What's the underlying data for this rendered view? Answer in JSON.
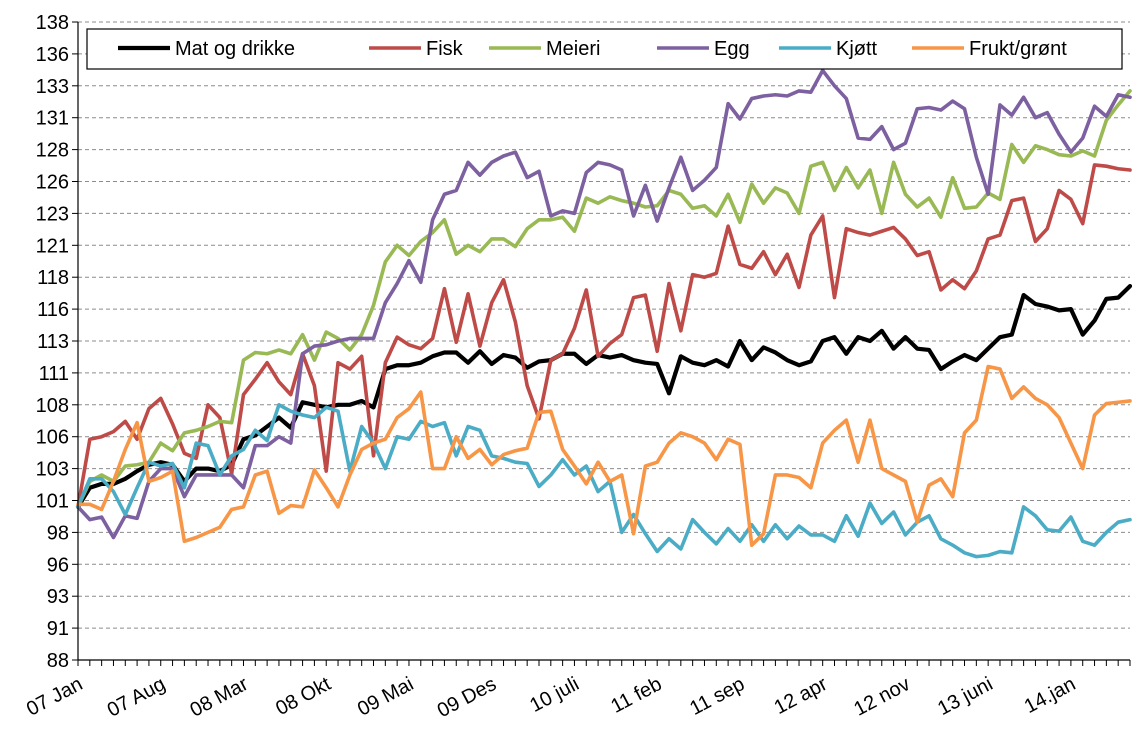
{
  "chart_data": {
    "type": "line",
    "categories": [
      "07 Jan",
      null,
      null,
      null,
      null,
      null,
      null,
      "07 Aug",
      null,
      null,
      null,
      null,
      null,
      null,
      "08 Mar",
      null,
      null,
      null,
      null,
      null,
      null,
      "08 Okt",
      null,
      null,
      null,
      null,
      null,
      null,
      "09 Mai",
      null,
      null,
      null,
      null,
      null,
      null,
      "09 Des",
      null,
      null,
      null,
      null,
      null,
      null,
      "10 juli",
      null,
      null,
      null,
      null,
      null,
      null,
      "11 feb",
      null,
      null,
      null,
      null,
      null,
      null,
      "11 sep",
      null,
      null,
      null,
      null,
      null,
      null,
      "12 apr",
      null,
      null,
      null,
      null,
      null,
      null,
      "12 nov",
      null,
      null,
      null,
      null,
      null,
      null,
      "13 juni",
      null,
      null,
      null,
      null,
      null,
      null,
      "14.jan",
      null,
      null,
      null,
      null,
      null
    ],
    "ylim": [
      88,
      138
    ],
    "yticks": [
      88,
      {
        "value": 90.5,
        "label": "91"
      },
      93,
      {
        "value": 95.5,
        "label": "96"
      },
      98,
      {
        "value": 100.5,
        "label": "101"
      },
      103,
      {
        "value": 105.5,
        "label": "106"
      },
      108,
      {
        "value": 110.5,
        "label": "111"
      },
      113,
      {
        "value": 115.5,
        "label": "116"
      },
      118,
      {
        "value": 120.5,
        "label": "121"
      },
      123,
      {
        "value": 125.5,
        "label": "126"
      },
      128,
      {
        "value": 130.5,
        "label": "131"
      },
      133,
      {
        "value": 135.5,
        "label": "136"
      },
      138
    ],
    "grid": true,
    "legend": "top",
    "series": [
      {
        "name": "Mat og drikke",
        "color": "#000000",
        "values": [
          100,
          101.5,
          101.8,
          101.8,
          102.2,
          102.8,
          103.3,
          103.5,
          103.3,
          102,
          103,
          103,
          102.8,
          103.3,
          105.3,
          105.6,
          106.3,
          107,
          106.2,
          108.2,
          108,
          107.8,
          108,
          108,
          108.3,
          107.8,
          110.8,
          111.1,
          111.1,
          111.3,
          111.8,
          112.1,
          112.1,
          111.3,
          112.2,
          111.2,
          111.9,
          111.7,
          110.9,
          111.4,
          111.5,
          112,
          112,
          111.2,
          111.9,
          111.7,
          111.9,
          111.5,
          111.3,
          111.2,
          108.9,
          111.8,
          111.3,
          111.1,
          111.5,
          111,
          113,
          111.5,
          112.5,
          112.1,
          111.5,
          111.1,
          111.4,
          113,
          113.3,
          112,
          113.3,
          113,
          113.8,
          112.4,
          113.3,
          112.4,
          112.3,
          110.8,
          111.4,
          111.9,
          111.5,
          112.4,
          113.3,
          113.5,
          116.6,
          115.9,
          115.7,
          115.4,
          115.5,
          113.5,
          114.6,
          116.3,
          116.4,
          117.3
        ]
      },
      {
        "name": "Fisk",
        "color": "#be4b48",
        "values": [
          100,
          105.3,
          105.5,
          105.9,
          106.7,
          105.3,
          107.7,
          108.5,
          106.5,
          104.2,
          103.8,
          108,
          107,
          102.6,
          108.8,
          110,
          111.3,
          109.8,
          108.8,
          112,
          109.5,
          102.8,
          111.3,
          110.8,
          111.8,
          104,
          111.3,
          113.3,
          112.7,
          112.4,
          113.2,
          117.1,
          112.9,
          116.7,
          112.6,
          116,
          117.8,
          114.5,
          109.5,
          106.9,
          111.5,
          112,
          114,
          117,
          111.8,
          112.8,
          113.5,
          116.4,
          116.6,
          112.2,
          117.5,
          113.8,
          118.2,
          118,
          118.3,
          122,
          119,
          118.7,
          120,
          118.2,
          119.8,
          117.2,
          121.3,
          122.8,
          116.4,
          121.8,
          121.5,
          121.3,
          121.6,
          121.9,
          121,
          119.7,
          120,
          117,
          117.8,
          117.1,
          118.5,
          121,
          121.3,
          124,
          124.2,
          120.8,
          121.8,
          124.8,
          124.1,
          122.2,
          126.8,
          126.7,
          126.5,
          126.4
        ]
      },
      {
        "name": "Meieri",
        "color": "#98b954",
        "values": [
          100,
          102,
          102.5,
          102,
          103.2,
          103.3,
          103.5,
          105,
          104.4,
          105.8,
          106,
          106.3,
          106.7,
          106.6,
          111.5,
          112.1,
          112,
          112.3,
          112,
          113.5,
          111.5,
          113.7,
          113.2,
          112.3,
          113.5,
          115.8,
          119.2,
          120.5,
          119.7,
          120.8,
          121.5,
          122.5,
          119.8,
          120.5,
          120,
          121,
          121,
          120.4,
          121.8,
          122.5,
          122.5,
          122.7,
          121.6,
          124.2,
          123.8,
          124.3,
          124,
          123.8,
          123.5,
          123.6,
          124.8,
          124.5,
          123.4,
          123.6,
          122.8,
          124.5,
          122.3,
          125.3,
          123.8,
          125,
          124.6,
          123,
          126.7,
          127,
          124.8,
          126.6,
          125,
          126.4,
          123,
          127,
          124.5,
          123.5,
          124.2,
          122.7,
          125.8,
          123.4,
          123.5,
          124.6,
          124.1,
          128.4,
          127,
          128.3,
          128,
          127.6,
          127.5,
          127.9,
          127.5,
          130.3,
          131.5,
          132.6
        ]
      },
      {
        "name": "Egg",
        "color": "#7d60a0",
        "values": [
          100,
          99,
          99.2,
          97.6,
          99.3,
          99.1,
          102,
          103,
          103,
          100.8,
          102.5,
          102.5,
          102.5,
          102.5,
          101.5,
          104.8,
          104.8,
          105.5,
          105,
          112,
          112.6,
          112.7,
          113,
          113.2,
          113.2,
          113.2,
          116,
          117.5,
          119.3,
          117.6,
          122.5,
          124.5,
          124.8,
          127,
          126,
          127,
          127.5,
          127.8,
          125.8,
          126.3,
          122.8,
          123.2,
          123,
          126.2,
          127,
          126.8,
          126.4,
          122.8,
          125.2,
          122.4,
          125,
          127.4,
          124.8,
          125.6,
          126.6,
          131.6,
          130.4,
          132,
          132.2,
          132.3,
          132.2,
          132.6,
          132.5,
          134.2,
          133,
          132,
          128.9,
          128.8,
          129.8,
          128,
          128.5,
          131.2,
          131.3,
          131.1,
          131.8,
          131.2,
          127.4,
          124.5,
          131.5,
          130.7,
          132.1,
          130.5,
          130.9,
          129.2,
          127.8,
          128.9,
          131.4,
          130.6,
          132.3,
          132.1
        ]
      },
      {
        "name": "Kjøtt",
        "color": "#4bacc6",
        "values": [
          100,
          102.2,
          102.2,
          101.2,
          99.4,
          101.5,
          103.5,
          103.2,
          103.4,
          101.5,
          105,
          104.8,
          102.5,
          104,
          104.5,
          106,
          105.2,
          108,
          107.5,
          107.2,
          107,
          107.8,
          107.5,
          102.8,
          106.3,
          105,
          103,
          105.5,
          105.3,
          106.7,
          106.3,
          106.6,
          104,
          106.3,
          106,
          104,
          103.8,
          103.5,
          103.4,
          101.6,
          102.5,
          103.7,
          102.5,
          103.2,
          101.2,
          102,
          98,
          99.4,
          97.9,
          96.5,
          97.5,
          96.7,
          99,
          98,
          97.1,
          98.3,
          97.3,
          98.6,
          97.3,
          98.6,
          97.5,
          98.5,
          97.8,
          97.8,
          97.3,
          99.3,
          97.7,
          100.3,
          98.7,
          99.6,
          97.8,
          98.8,
          99.3,
          97.5,
          97,
          96.4,
          96.1,
          96.2,
          96.5,
          96.4,
          100,
          99.3,
          98.2,
          98.1,
          99.2,
          97.3,
          97,
          98,
          98.8,
          99
        ]
      },
      {
        "name": "Frukt/grønt",
        "color": "#f79646",
        "values": [
          100.2,
          100.2,
          99.8,
          102,
          104.5,
          106.6,
          102,
          102.3,
          102.8,
          97.3,
          97.6,
          98,
          98.4,
          99.8,
          100,
          102.5,
          102.8,
          99.5,
          100.1,
          100,
          102.9,
          101.5,
          100,
          102.5,
          104.5,
          105,
          105.3,
          107,
          107.7,
          109,
          103,
          103,
          105.5,
          103.8,
          104.5,
          103.3,
          104.1,
          104.4,
          104.6,
          107.4,
          107.5,
          104.5,
          103.2,
          101.8,
          103.5,
          102,
          102.5,
          97.9,
          103.2,
          103.5,
          105,
          105.8,
          105.5,
          105,
          103.7,
          105.3,
          104.9,
          97,
          97.9,
          102.5,
          102.5,
          102.3,
          101.5,
          105,
          106,
          106.8,
          103.5,
          106.8,
          103,
          102.5,
          102,
          98.8,
          101.7,
          102.2,
          100.8,
          105.8,
          106.8,
          111,
          110.8,
          108.5,
          109.4,
          108.5,
          108,
          107,
          105,
          103,
          107.2,
          108.1,
          108.2,
          108.3
        ]
      }
    ]
  }
}
